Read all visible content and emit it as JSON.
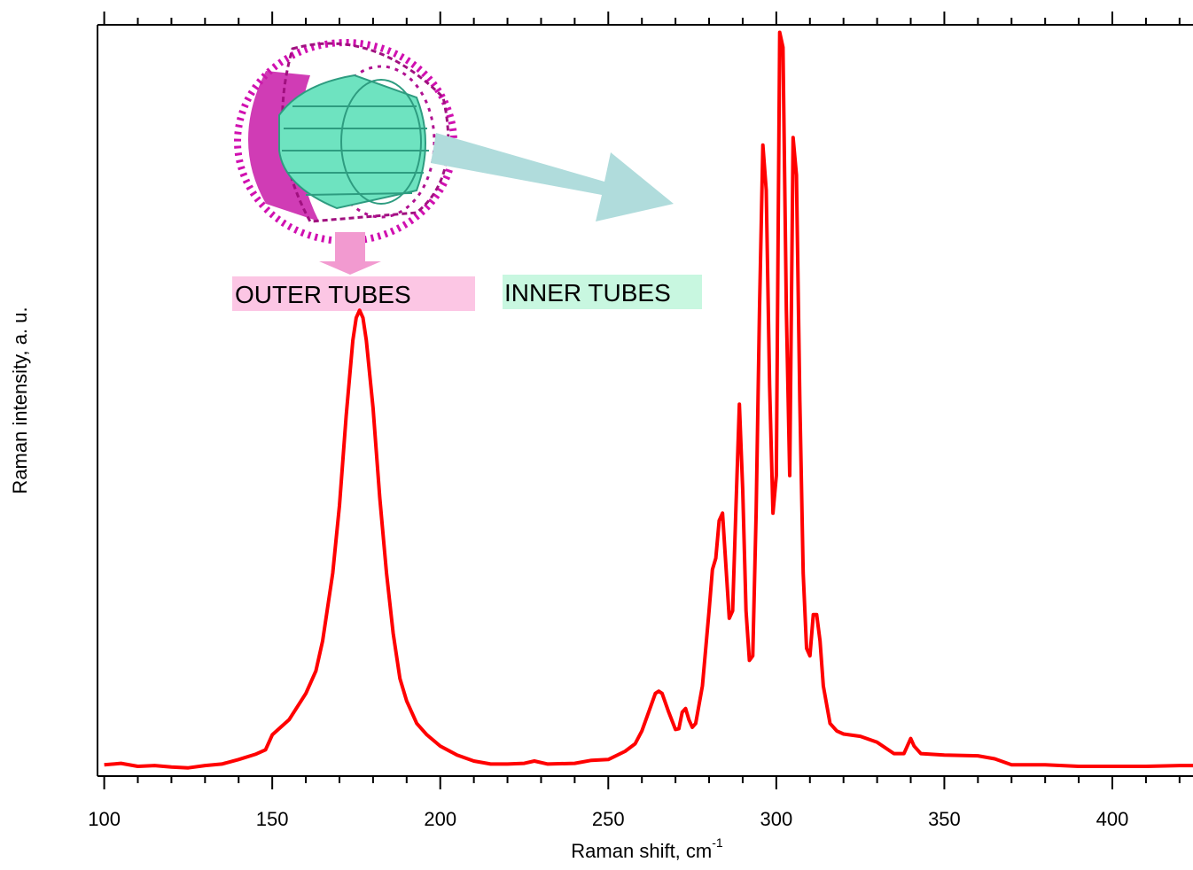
{
  "chart_data": {
    "type": "line",
    "x_label": {
      "text": "Raman shift, cm",
      "superscript": "-1"
    },
    "y_label": "Raman intensity, a. u.",
    "annotations": [
      "OUTER TUBES",
      "INNER TUBES"
    ],
    "color": "#ff0000",
    "xlim": [
      98,
      424
    ],
    "ylim": [
      0,
      100
    ],
    "xticks": [
      100,
      150,
      200,
      250,
      300,
      350,
      400
    ],
    "xticks_minor": [
      110,
      120,
      130,
      140,
      160,
      170,
      180,
      190,
      210,
      220,
      230,
      240,
      260,
      270,
      280,
      290,
      310,
      320,
      330,
      340,
      360,
      370,
      380,
      390,
      410,
      420
    ],
    "x": [
      100,
      105,
      110,
      115,
      120,
      125,
      130,
      135,
      140,
      145,
      148,
      150,
      155,
      160,
      163,
      165,
      168,
      170,
      172,
      174,
      175,
      176,
      177,
      178,
      180,
      182,
      184,
      186,
      188,
      190,
      193,
      196,
      200,
      205,
      210,
      215,
      220,
      225,
      228,
      232,
      240,
      245,
      250,
      255,
      258,
      260,
      262,
      264,
      265,
      266,
      268,
      270,
      271,
      272,
      273,
      274,
      275,
      276,
      278,
      280,
      281,
      282,
      283,
      284,
      285,
      286,
      287,
      288,
      289,
      290,
      291,
      292,
      293,
      294,
      295,
      296,
      297,
      298,
      299,
      300,
      300.5,
      301,
      302,
      303,
      304,
      305,
      306,
      307,
      308,
      309,
      310,
      311,
      312,
      313,
      314,
      316,
      318,
      320,
      325,
      330,
      335,
      338,
      340,
      341,
      343,
      350,
      360,
      365,
      370,
      380,
      390,
      400,
      410,
      420,
      424
    ],
    "values": [
      1.5,
      1.7,
      1.3,
      1.4,
      1.2,
      1.1,
      1.4,
      1.6,
      2.2,
      2.9,
      3.5,
      5.5,
      7.5,
      11,
      14,
      18,
      27,
      36,
      48,
      58,
      61,
      62,
      61,
      58,
      49,
      37,
      27,
      19,
      13,
      10,
      7,
      5.5,
      4,
      2.8,
      2,
      1.6,
      1.6,
      1.7,
      2,
      1.6,
      1.7,
      2.1,
      2.2,
      3.3,
      4.3,
      6,
      8.5,
      11,
      11.3,
      11,
      8.5,
      6.2,
      6.3,
      8.5,
      9,
      7.5,
      6.5,
      7,
      12,
      22,
      27.5,
      29,
      34,
      35,
      28,
      21,
      22,
      36,
      49.5,
      38,
      22,
      15.4,
      16,
      35,
      62,
      84,
      78,
      52,
      35,
      40,
      70,
      99,
      97,
      62,
      40,
      85,
      80,
      50,
      27,
      17,
      16,
      21.5,
      21.5,
      18,
      12,
      7,
      6,
      5.6,
      5.3,
      4.5,
      3,
      3,
      5,
      4,
      3,
      2.8,
      2.7,
      2.3,
      1.5,
      1.5,
      1.3,
      1.3,
      1.3,
      1.4,
      1.4
    ]
  }
}
